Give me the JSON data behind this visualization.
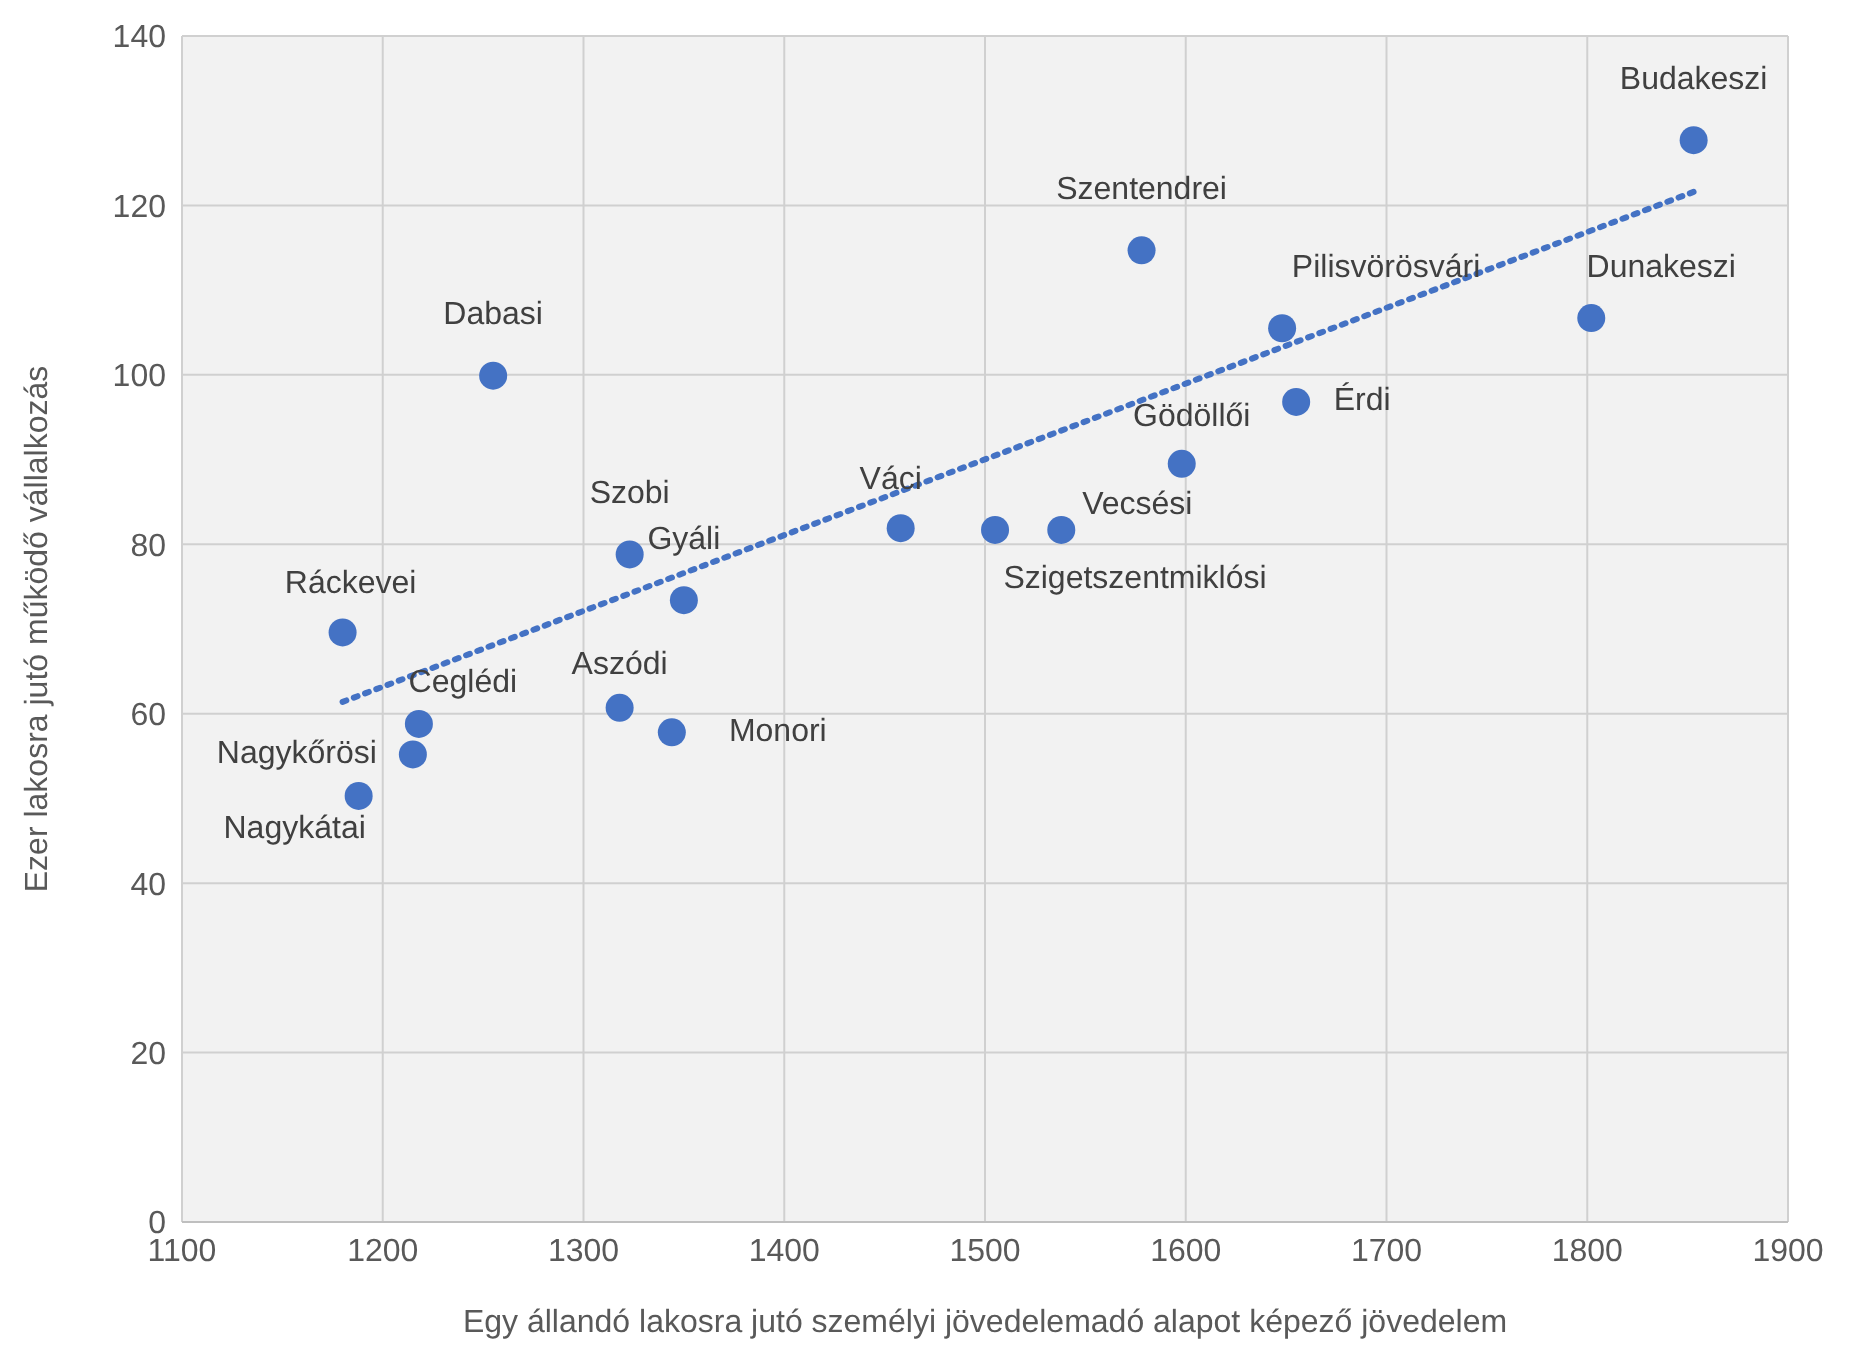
{
  "chart_data": {
    "type": "scatter",
    "xlabel": "Egy állandó lakosra jutó személyi jövedelemadó alapot képező jövedelem",
    "ylabel": "Ezer lakosra jutó működő vállalkozás",
    "xlim": [
      1100,
      1900
    ],
    "xticks": [
      1100,
      1200,
      1300,
      1400,
      1500,
      1600,
      1700,
      1800,
      1900
    ],
    "ylim": [
      0,
      140
    ],
    "yticks": [
      0,
      20,
      40,
      60,
      80,
      100,
      120,
      140
    ],
    "grid": true,
    "legend": false,
    "marker": "circle",
    "series": [
      {
        "color": "#4472c4",
        "x": [
          1853,
          1578,
          1648,
          1802,
          1655,
          1255,
          1598,
          1458,
          1505,
          1538,
          1323,
          1350,
          1180,
          1218,
          1215,
          1318,
          1344,
          1188
        ],
        "values": [
          127.7,
          114.7,
          105.5,
          106.7,
          96.8,
          99.9,
          89.5,
          81.9,
          81.7,
          81.7,
          78.8,
          73.4,
          69.6,
          58.8,
          55.2,
          60.7,
          57.8,
          50.3
        ]
      },
      {
        "type": "line",
        "color": "#4472c4",
        "line_style": "dotted",
        "marker": "none",
        "x": [
          1180,
          1853
        ],
        "values": [
          61.4,
          121.6
        ]
      }
    ],
    "annotations": [
      {
        "text": "Budakeszi",
        "x": 1853,
        "y": 127.7
      },
      {
        "text": "Szentendrei",
        "x": 1578,
        "y": 114.7
      },
      {
        "text": "Pilisvörösvári",
        "x": 1648,
        "y": 105.5
      },
      {
        "text": "Dunakeszi",
        "x": 1802,
        "y": 106.7
      },
      {
        "text": "Érdi",
        "x": 1655,
        "y": 96.8
      },
      {
        "text": "Dabasi",
        "x": 1255,
        "y": 99.9
      },
      {
        "text": "Gödöllői",
        "x": 1598,
        "y": 89.5
      },
      {
        "text": "Váci",
        "x": 1458,
        "y": 81.9
      },
      {
        "text": "Szigetszentmiklósi",
        "x": 1505,
        "y": 81.7
      },
      {
        "text": "Vecsési",
        "x": 1538,
        "y": 81.7
      },
      {
        "text": "Szobi",
        "x": 1323,
        "y": 78.8
      },
      {
        "text": "Gyáli",
        "x": 1350,
        "y": 73.4
      },
      {
        "text": "Ráckevei",
        "x": 1180,
        "y": 69.6
      },
      {
        "text": "Ceglédi",
        "x": 1218,
        "y": 58.8
      },
      {
        "text": "Nagykőrösi",
        "x": 1215,
        "y": 55.2
      },
      {
        "text": "Aszódi",
        "x": 1318,
        "y": 60.7
      },
      {
        "text": "Monori",
        "x": 1344,
        "y": 57.8
      },
      {
        "text": "Nagykátai",
        "x": 1188,
        "y": 50.3
      }
    ]
  }
}
